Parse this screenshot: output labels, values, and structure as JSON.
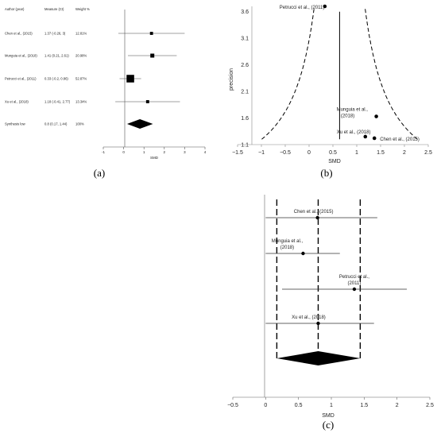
{
  "captions": {
    "a": "(a)",
    "b": "(b)",
    "c": "(c)"
  },
  "chart_data": [
    {
      "type": "forest",
      "headers": {
        "author": "Author (year)",
        "measure": "Measure (CI)",
        "weight": "Weight %"
      },
      "xlabel": "SMD",
      "xlim": [
        -1,
        4
      ],
      "xticks": [
        "-1",
        "0",
        "1",
        "2",
        "3",
        "4"
      ],
      "rows": [
        {
          "author": "Chen et al., (2015)",
          "measure": "1.37 (-0.26, 3)",
          "weight": "12.81%",
          "est": 1.37,
          "lo": -0.26,
          "hi": 3.0,
          "w": 12.81
        },
        {
          "author": "Munguia et al., (2018)",
          "measure": "1.41 (0.21, 2.61)",
          "weight": "20.98%",
          "est": 1.41,
          "lo": 0.21,
          "hi": 2.61,
          "w": 20.98
        },
        {
          "author": "Petrucci et al., (2011)",
          "measure": "0.33 (-0.2, 0.86)",
          "weight": "52.87%",
          "est": 0.33,
          "lo": -0.2,
          "hi": 0.86,
          "w": 52.87
        },
        {
          "author": "Xu et al., (2018)",
          "measure": "1.18 (-0.41, 2.77)",
          "weight": "13.34%",
          "est": 1.18,
          "lo": -0.41,
          "hi": 2.77,
          "w": 13.34
        }
      ],
      "summary": {
        "author": "Synthesis low",
        "measure": "0.8 (0.17, 1.44)",
        "weight": "100%",
        "est": 0.8,
        "lo": 0.17,
        "hi": 1.44
      }
    },
    {
      "type": "scatter",
      "xlabel": "SMD",
      "ylabel": "precision",
      "xlim": [
        -1.5,
        2.5
      ],
      "ylim": [
        1.1,
        3.7
      ],
      "xticks": [
        "−1.5",
        "−1",
        "−0.5",
        "0",
        "0.5",
        "1",
        "1.5",
        "2",
        "2.5"
      ],
      "yticks": [
        "1.1",
        "1.6",
        "2.1",
        "2.6",
        "3.1",
        "3.6"
      ],
      "center": 0.64,
      "points": [
        {
          "label": "Petrucci et al., (2011)",
          "x": 0.33,
          "y": 3.7
        },
        {
          "label": "Munguia et al., (2018)",
          "x": 1.41,
          "y": 1.63
        },
        {
          "label": "Xu et al., (2018)",
          "x": 1.18,
          "y": 1.25
        },
        {
          "label": "Chen et al., (2015)",
          "x": 1.37,
          "y": 1.22
        }
      ]
    },
    {
      "type": "forest",
      "xlabel": "SMD",
      "xlim": [
        -0.5,
        2.5
      ],
      "xticks": [
        "−0.5",
        "0",
        "0.5",
        "1",
        "1.5",
        "2",
        "2.5"
      ],
      "rows": [
        {
          "label": "Chen et al., (2015)",
          "est": 0.79,
          "lo": 0.0,
          "hi": 1.7
        },
        {
          "label": "Munguia et al., (2018)",
          "est": 0.57,
          "lo": 0.0,
          "hi": 1.13
        },
        {
          "label": "Petrucci et al., (2011)",
          "est": 1.35,
          "lo": 0.25,
          "hi": 2.15
        },
        {
          "label": "Xu et al., (2018)",
          "est": 0.8,
          "lo": 0.0,
          "hi": 1.65
        }
      ],
      "summary": {
        "est": 0.8,
        "lo": 0.17,
        "hi": 1.44
      }
    }
  ]
}
